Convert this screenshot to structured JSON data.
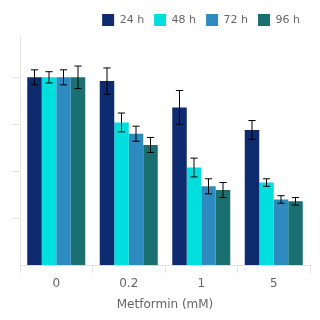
{
  "chart_data": {
    "type": "bar",
    "xlabel": "Metformin (mM)",
    "categories": [
      "0",
      "0.2",
      "1",
      "5"
    ],
    "series": [
      {
        "name": "24 h",
        "color": "#0d2b6e",
        "values": [
          1.0,
          0.98,
          0.84,
          0.72
        ],
        "errors": [
          0.04,
          0.07,
          0.09,
          0.05
        ]
      },
      {
        "name": "48 h",
        "color": "#00dede",
        "values": [
          1.0,
          0.76,
          0.52,
          0.44
        ],
        "errors": [
          0.03,
          0.05,
          0.05,
          0.02
        ]
      },
      {
        "name": "72 h",
        "color": "#2e8bc0",
        "values": [
          1.0,
          0.7,
          0.42,
          0.35
        ],
        "errors": [
          0.04,
          0.04,
          0.04,
          0.02
        ]
      },
      {
        "name": "96 h",
        "color": "#1a7070",
        "values": [
          1.0,
          0.64,
          0.4,
          0.34
        ],
        "errors": [
          0.06,
          0.04,
          0.04,
          0.02
        ]
      }
    ],
    "ylim": [
      0,
      1.22
    ],
    "yticks": [
      0.25,
      0.5,
      0.75,
      1.0
    ],
    "tick_labels": "x",
    "grid": false,
    "legend": "upper right"
  }
}
